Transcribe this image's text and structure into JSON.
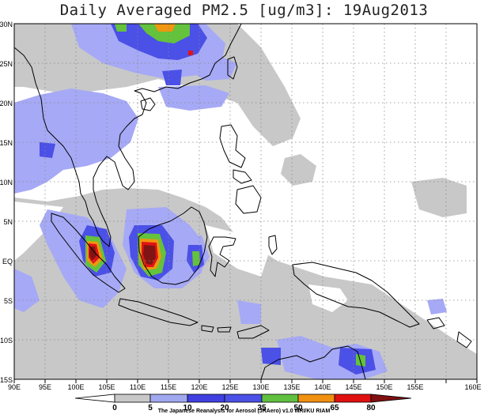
{
  "title": "Daily Averaged PM2.5 [ug/m3]: 19Aug2013",
  "credit": "The Japanese Reanalysis for Aerosol (JRAero) v1.0 MRI/KU RIAM",
  "lon_labels": [
    "90E",
    "95E",
    "100E",
    "105E",
    "110E",
    "115E",
    "120E",
    "125E",
    "130E",
    "135E",
    "140E",
    "145E",
    "150E",
    "155E",
    "160E"
  ],
  "lat_labels": [
    "30N",
    "25N",
    "20N",
    "15N",
    "10N",
    "5N",
    "EQ",
    "5S",
    "10S",
    "15S"
  ],
  "colorbar": {
    "levels": [
      "0",
      "5",
      "10",
      "20",
      "35",
      "50",
      "65",
      "80"
    ],
    "colors": [
      "#ffffff",
      "#c8c8c8",
      "#a0a8f0",
      "#4040e0",
      "#60c040",
      "#f09010",
      "#e01010",
      "#801010"
    ]
  },
  "colors": {
    "grey": "#c8c8c8",
    "light_blue": "#a6a9f5",
    "blue": "#4b50e6",
    "green": "#64c23c",
    "orange": "#f0960f",
    "red": "#e11414",
    "dark_red": "#801414",
    "coast": "#000000",
    "grid": "#888888"
  }
}
